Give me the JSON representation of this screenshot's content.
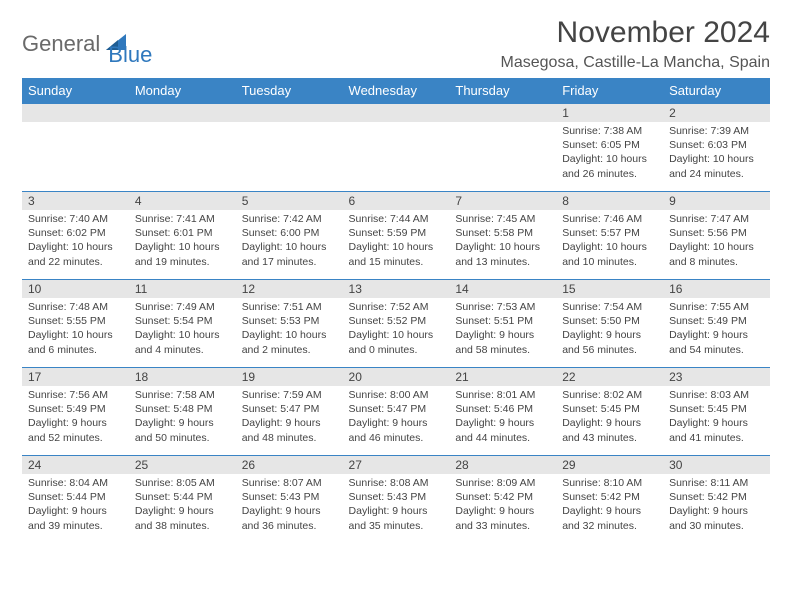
{
  "brand": {
    "part1": "General",
    "part2": "Blue",
    "sail_color": "#2f78bd"
  },
  "title": "November 2024",
  "location": "Masegosa, Castille-La Mancha, Spain",
  "colors": {
    "header_bg": "#3a84c5",
    "header_fg": "#ffffff",
    "daynum_bg": "#e6e6e6",
    "border": "#3a84c5",
    "text": "#444444"
  },
  "daysOfWeek": [
    "Sunday",
    "Monday",
    "Tuesday",
    "Wednesday",
    "Thursday",
    "Friday",
    "Saturday"
  ],
  "leadingEmpty": 5,
  "cells": [
    {
      "n": "1",
      "sr": "7:38 AM",
      "ss": "6:05 PM",
      "dl": "10 hours and 26 minutes."
    },
    {
      "n": "2",
      "sr": "7:39 AM",
      "ss": "6:03 PM",
      "dl": "10 hours and 24 minutes."
    },
    {
      "n": "3",
      "sr": "7:40 AM",
      "ss": "6:02 PM",
      "dl": "10 hours and 22 minutes."
    },
    {
      "n": "4",
      "sr": "7:41 AM",
      "ss": "6:01 PM",
      "dl": "10 hours and 19 minutes."
    },
    {
      "n": "5",
      "sr": "7:42 AM",
      "ss": "6:00 PM",
      "dl": "10 hours and 17 minutes."
    },
    {
      "n": "6",
      "sr": "7:44 AM",
      "ss": "5:59 PM",
      "dl": "10 hours and 15 minutes."
    },
    {
      "n": "7",
      "sr": "7:45 AM",
      "ss": "5:58 PM",
      "dl": "10 hours and 13 minutes."
    },
    {
      "n": "8",
      "sr": "7:46 AM",
      "ss": "5:57 PM",
      "dl": "10 hours and 10 minutes."
    },
    {
      "n": "9",
      "sr": "7:47 AM",
      "ss": "5:56 PM",
      "dl": "10 hours and 8 minutes."
    },
    {
      "n": "10",
      "sr": "7:48 AM",
      "ss": "5:55 PM",
      "dl": "10 hours and 6 minutes."
    },
    {
      "n": "11",
      "sr": "7:49 AM",
      "ss": "5:54 PM",
      "dl": "10 hours and 4 minutes."
    },
    {
      "n": "12",
      "sr": "7:51 AM",
      "ss": "5:53 PM",
      "dl": "10 hours and 2 minutes."
    },
    {
      "n": "13",
      "sr": "7:52 AM",
      "ss": "5:52 PM",
      "dl": "10 hours and 0 minutes."
    },
    {
      "n": "14",
      "sr": "7:53 AM",
      "ss": "5:51 PM",
      "dl": "9 hours and 58 minutes."
    },
    {
      "n": "15",
      "sr": "7:54 AM",
      "ss": "5:50 PM",
      "dl": "9 hours and 56 minutes."
    },
    {
      "n": "16",
      "sr": "7:55 AM",
      "ss": "5:49 PM",
      "dl": "9 hours and 54 minutes."
    },
    {
      "n": "17",
      "sr": "7:56 AM",
      "ss": "5:49 PM",
      "dl": "9 hours and 52 minutes."
    },
    {
      "n": "18",
      "sr": "7:58 AM",
      "ss": "5:48 PM",
      "dl": "9 hours and 50 minutes."
    },
    {
      "n": "19",
      "sr": "7:59 AM",
      "ss": "5:47 PM",
      "dl": "9 hours and 48 minutes."
    },
    {
      "n": "20",
      "sr": "8:00 AM",
      "ss": "5:47 PM",
      "dl": "9 hours and 46 minutes."
    },
    {
      "n": "21",
      "sr": "8:01 AM",
      "ss": "5:46 PM",
      "dl": "9 hours and 44 minutes."
    },
    {
      "n": "22",
      "sr": "8:02 AM",
      "ss": "5:45 PM",
      "dl": "9 hours and 43 minutes."
    },
    {
      "n": "23",
      "sr": "8:03 AM",
      "ss": "5:45 PM",
      "dl": "9 hours and 41 minutes."
    },
    {
      "n": "24",
      "sr": "8:04 AM",
      "ss": "5:44 PM",
      "dl": "9 hours and 39 minutes."
    },
    {
      "n": "25",
      "sr": "8:05 AM",
      "ss": "5:44 PM",
      "dl": "9 hours and 38 minutes."
    },
    {
      "n": "26",
      "sr": "8:07 AM",
      "ss": "5:43 PM",
      "dl": "9 hours and 36 minutes."
    },
    {
      "n": "27",
      "sr": "8:08 AM",
      "ss": "5:43 PM",
      "dl": "9 hours and 35 minutes."
    },
    {
      "n": "28",
      "sr": "8:09 AM",
      "ss": "5:42 PM",
      "dl": "9 hours and 33 minutes."
    },
    {
      "n": "29",
      "sr": "8:10 AM",
      "ss": "5:42 PM",
      "dl": "9 hours and 32 minutes."
    },
    {
      "n": "30",
      "sr": "8:11 AM",
      "ss": "5:42 PM",
      "dl": "9 hours and 30 minutes."
    }
  ],
  "labels": {
    "sunrise": "Sunrise:",
    "sunset": "Sunset:",
    "daylight": "Daylight:"
  }
}
